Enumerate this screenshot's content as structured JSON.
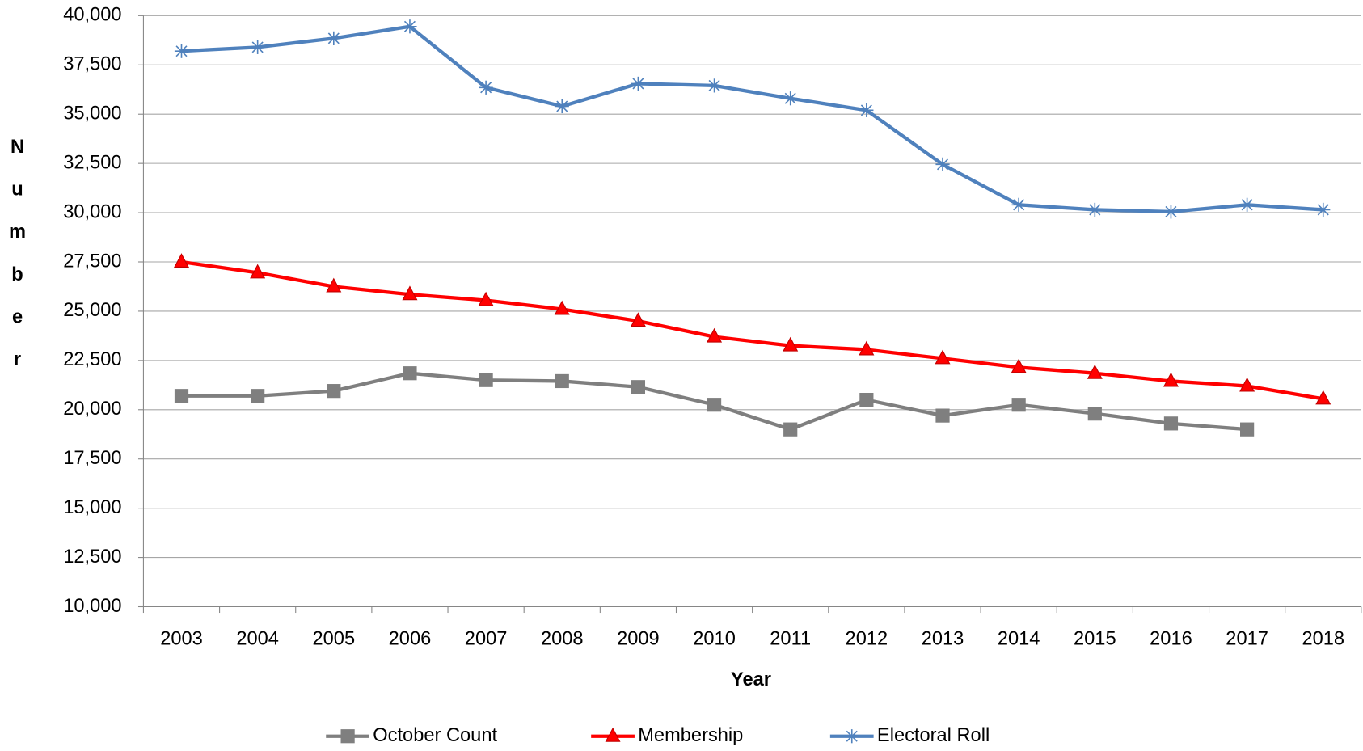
{
  "chart_data": {
    "type": "line",
    "x_label": "Year",
    "y_label": "Number",
    "categories": [
      "2003",
      "2004",
      "2005",
      "2006",
      "2007",
      "2008",
      "2009",
      "2010",
      "2011",
      "2012",
      "2013",
      "2014",
      "2015",
      "2016",
      "2017",
      "2018"
    ],
    "series": [
      {
        "name": "October Count",
        "color": "#7f7f7f",
        "marker": "square",
        "values": [
          20700,
          20700,
          20950,
          21850,
          21500,
          21450,
          21150,
          20250,
          19000,
          20500,
          19700,
          20250,
          19800,
          19300,
          19000,
          null
        ]
      },
      {
        "name": "Membership",
        "color": "#ff0000",
        "marker": "triangle",
        "values": [
          27500,
          26950,
          26250,
          25850,
          25550,
          25100,
          24500,
          23700,
          23250,
          23050,
          22600,
          22150,
          21850,
          21450,
          21200,
          20550
        ]
      },
      {
        "name": "Electoral Roll",
        "color": "#4f81bd",
        "marker": "star",
        "values": [
          38200,
          38400,
          38850,
          39450,
          36350,
          35400,
          36550,
          36450,
          35800,
          35200,
          32450,
          30400,
          30150,
          30050,
          30400,
          30150
        ]
      }
    ],
    "ylim": [
      10000,
      40000
    ],
    "yticks": [
      {
        "value": 10000,
        "label": "10,000"
      },
      {
        "value": 12500,
        "label": "12,500"
      },
      {
        "value": 15000,
        "label": "15,000"
      },
      {
        "value": 17500,
        "label": "17,500"
      },
      {
        "value": 20000,
        "label": "20,000"
      },
      {
        "value": 22500,
        "label": "22,500"
      },
      {
        "value": 25000,
        "label": "25,000"
      },
      {
        "value": 27500,
        "label": "27,500"
      },
      {
        "value": 30000,
        "label": "30,000"
      },
      {
        "value": 32500,
        "label": "32,500"
      },
      {
        "value": 35000,
        "label": "35,000"
      },
      {
        "value": 37500,
        "label": "37,500"
      },
      {
        "value": 40000,
        "label": "40,000"
      }
    ],
    "grid": true,
    "legend": "bottom"
  }
}
